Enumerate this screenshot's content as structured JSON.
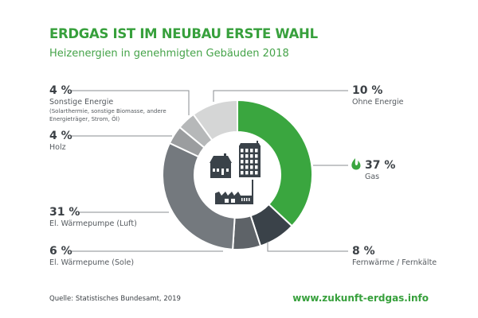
{
  "title": "ERDGAS IST IM NEUBAU ERSTE WAHL",
  "subtitle": "Heizenergien in genehmigten Gebäuden 2018",
  "source": "Quelle: Statistisches Bundesamt, 2019",
  "url": "www.zukunft-erdgas.info",
  "chart_data": {
    "type": "pie",
    "title": "Heizenergien in genehmigten Gebäuden 2018",
    "donut": true,
    "slices": [
      {
        "label": "Gas",
        "value": 37,
        "pct_text": "37 %",
        "color": "#3aa63f"
      },
      {
        "label": "Fernwärme / Fernkälte",
        "value": 8,
        "pct_text": "8 %",
        "color": "#3a4249"
      },
      {
        "label": "El. Wärmepume (Sole)",
        "value": 6,
        "pct_text": "6 %",
        "color": "#5e6368"
      },
      {
        "label": "El. Wärmepumpe (Luft)",
        "value": 31,
        "pct_text": "31 %",
        "color": "#74797e"
      },
      {
        "label": "Holz",
        "value": 4,
        "pct_text": "4 %",
        "color": "#9b9d9f"
      },
      {
        "label": "Sonstige Energie",
        "note": "(Solarthermie, sonstige Biomasse, andere Energieträger, Strom, Öl)",
        "note_lines": [
          "(Solarthermie, sonstige Biomasse, andere",
          "Energieträger, Strom, Öl)"
        ],
        "value": 4,
        "pct_text": "4 %",
        "color": "#b6b8b9"
      },
      {
        "label": "Ohne Energie",
        "value": 10,
        "pct_text": "10 %",
        "color": "#d5d6d6"
      }
    ]
  },
  "icons": {
    "gas": "flame-icon",
    "center": [
      "house-icon",
      "apartment-building-icon",
      "factory-icon"
    ]
  }
}
